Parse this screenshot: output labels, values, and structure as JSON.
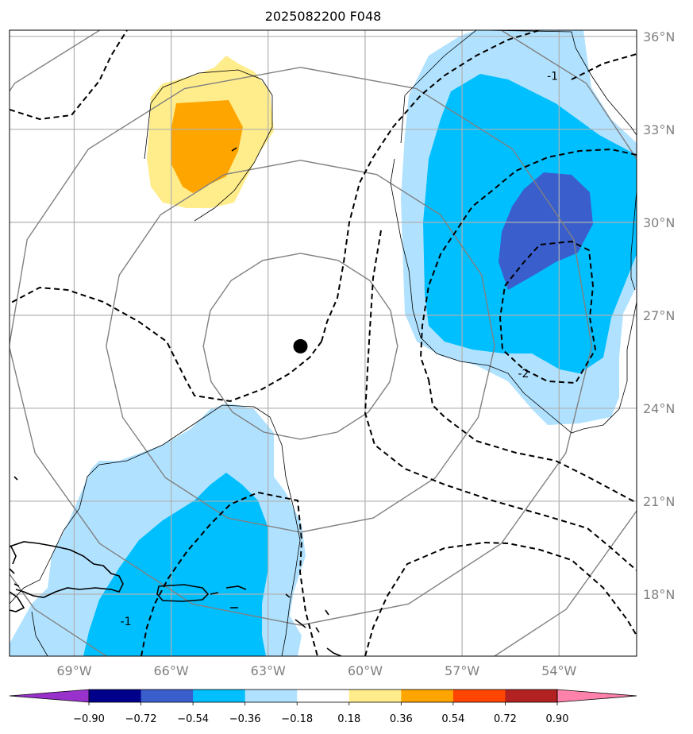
{
  "title": "2025082200 F048",
  "map": {
    "lon_range": [
      -71,
      -51.6
    ],
    "lat_range": [
      16,
      36.2
    ],
    "lon_ticks": [
      {
        "value": -69,
        "label": "69°W"
      },
      {
        "value": -66,
        "label": "66°W"
      },
      {
        "value": -63,
        "label": "63°W"
      },
      {
        "value": -60,
        "label": "60°W"
      },
      {
        "value": -57,
        "label": "57°W"
      },
      {
        "value": -54,
        "label": "54°W"
      }
    ],
    "lat_ticks": [
      {
        "value": 36,
        "label": "36°N"
      },
      {
        "value": 33,
        "label": "33°N"
      },
      {
        "value": 30,
        "label": "30°N"
      },
      {
        "value": 27,
        "label": "27°N"
      },
      {
        "value": 24,
        "label": "24°N"
      },
      {
        "value": 21,
        "label": "21°N"
      },
      {
        "value": 18,
        "label": "18°N"
      }
    ],
    "gridlines": true,
    "center_marker": {
      "lon": -62,
      "lat": 26
    },
    "range_rings_deg": [
      3,
      6,
      9,
      12
    ],
    "contour_labels": [
      {
        "text": "-1",
        "lon": -54.2,
        "lat": 34.6
      },
      {
        "text": "-2",
        "lon": -55.1,
        "lat": 25.0
      },
      {
        "text": "-1",
        "lon": -67.4,
        "lat": 17.0
      }
    ]
  },
  "colorbar": {
    "colors": [
      "#9932CC",
      "#00008B",
      "#3A5FCD",
      "#00BFFF",
      "#B0E2FF",
      "#FFFFFF",
      "#FFEC8B",
      "#FFA500",
      "#FF4500",
      "#B22222",
      "#FF82AB"
    ],
    "ticks": [
      "−0.90",
      "−0.72",
      "−0.54",
      "−0.36",
      "−0.18",
      "0.18",
      "0.36",
      "0.54",
      "0.72",
      "0.90"
    ]
  },
  "colors": {
    "gridline": "#b0b0b0",
    "ring": "#808080",
    "light_blue": "#B0E2FF",
    "blue": "#00BFFF",
    "dark_blue": "#3A5FCD",
    "light_yellow": "#FFEC8B",
    "orange": "#FFA500"
  }
}
